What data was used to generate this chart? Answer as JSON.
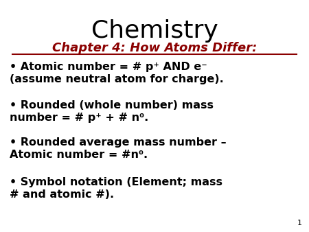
{
  "title": "Chemistry",
  "subtitle": "Chapter 4: How Atoms Differ:",
  "subtitle_color": "#8B0000",
  "background_color": "#FFFFFF",
  "title_fontsize": 26,
  "subtitle_fontsize": 13,
  "bullet_fontsize": 11.5,
  "bullet_color": "#000000",
  "page_number": "1",
  "bullets": [
    {
      "line1": "• Atomic number = # p⁺ AND e⁻",
      "line2": "(assume neutral atom for charge)."
    },
    {
      "line1": "• Rounded (whole number) mass",
      "line2": "number = # p⁺ + # n⁰."
    },
    {
      "line1": "• Rounded average mass number –",
      "line2": "Atomic number = #n⁰."
    },
    {
      "line1": "• Symbol notation (Element; mass",
      "line2": "# and atomic #)."
    }
  ]
}
